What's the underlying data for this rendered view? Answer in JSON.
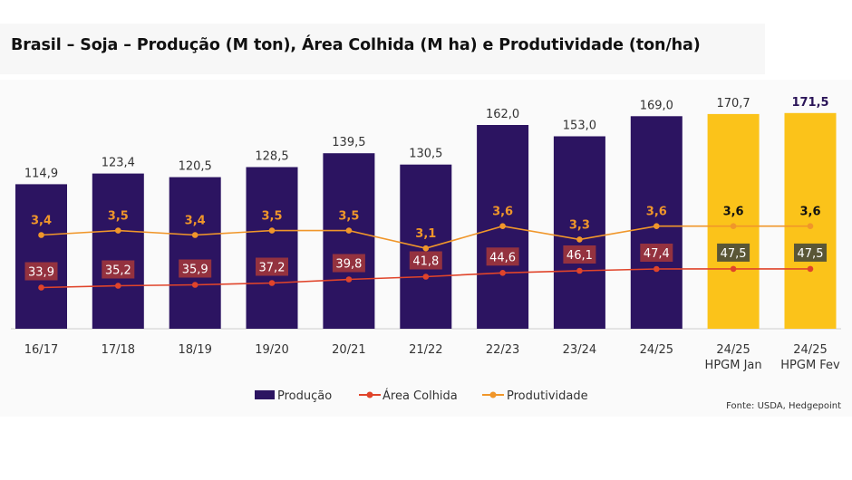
{
  "chart_data": {
    "type": "bar",
    "title": "Brasil – Soja – Produção (M ton), Área Colhida (M ha) e Produtividade (ton/ha)",
    "categories": [
      [
        "16/17"
      ],
      [
        "17/18"
      ],
      [
        "18/19"
      ],
      [
        "19/20"
      ],
      [
        "20/21"
      ],
      [
        "21/22"
      ],
      [
        "22/23"
      ],
      [
        "23/24"
      ],
      [
        "24/25"
      ],
      [
        "24/25",
        "HPGM Jan"
      ],
      [
        "24/25",
        "HPGM Fev"
      ]
    ],
    "series": [
      {
        "name": "Produção",
        "type": "bar",
        "values": [
          114.9,
          123.4,
          120.5,
          128.5,
          139.5,
          130.5,
          162.0,
          153.0,
          169.0,
          170.7,
          171.5
        ],
        "labels": [
          "114,9",
          "123,4",
          "120,5",
          "128,5",
          "139,5",
          "130,5",
          "162,0",
          "153,0",
          "169,0",
          "170,7",
          "171,5"
        ],
        "color": "#2c1461",
        "highlight_color": "#fbc31a",
        "highlight_from_index": 9
      },
      {
        "name": "Área Colhida",
        "type": "line",
        "values": [
          33.9,
          35.2,
          35.9,
          37.2,
          39.8,
          41.8,
          44.6,
          46.1,
          47.4,
          47.5,
          47.5
        ],
        "labels": [
          "33,9",
          "35,2",
          "35,9",
          "37,2",
          "39,8",
          "41,8",
          "44,6",
          "46,1",
          "47,4",
          "47,5",
          "47,5"
        ],
        "color": "#e0442a",
        "label_box_color": "#94323f",
        "label_box_color_highlight": "#5a5636"
      },
      {
        "name": "Produtividade",
        "type": "line",
        "values": [
          3.4,
          3.5,
          3.4,
          3.5,
          3.5,
          3.1,
          3.6,
          3.3,
          3.6,
          3.6,
          3.6
        ],
        "labels": [
          "3,4",
          "3,5",
          "3,4",
          "3,5",
          "3,5",
          "3,1",
          "3,6",
          "3,3",
          "3,6",
          "3,6",
          "3,6"
        ],
        "color": "#f0962a"
      }
    ],
    "ylim_bars": [
      0,
      185
    ],
    "source": "Fonte: USDA, Hedgepoint",
    "legend_position": "bottom-center",
    "grid": false
  }
}
